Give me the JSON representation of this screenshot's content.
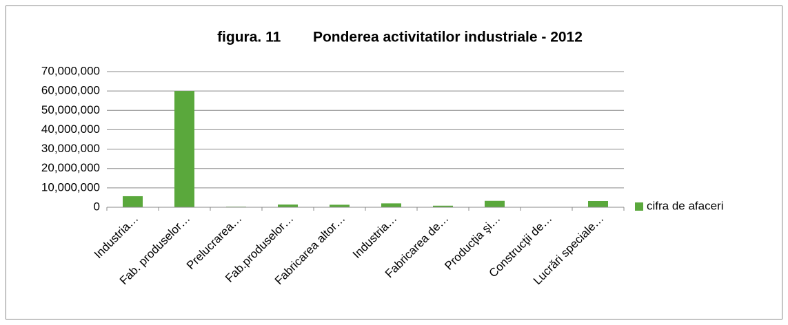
{
  "chart_data": {
    "type": "bar",
    "title": "figura. 11        Ponderea activitatilor industriale - 2012",
    "categories": [
      "Industria…",
      "Fab. produselor…",
      "Prelucrarea…",
      "Fab.produselor…",
      "Fabricarea altor…",
      "Industria…",
      "Fabricarea de…",
      "Producţia şi…",
      "Construcţii de…",
      "Lucrări speciale…"
    ],
    "series": [
      {
        "name": "cifra de afaceri",
        "color": "#5aa83c",
        "values": [
          5700000,
          60000000,
          300000,
          1400000,
          1300000,
          2000000,
          800000,
          3300000,
          0,
          3200000
        ]
      }
    ],
    "ylim": [
      0,
      70000000
    ],
    "yticks": [
      {
        "value": 0,
        "label": "0"
      },
      {
        "value": 10000000,
        "label": "10,000,000"
      },
      {
        "value": 20000000,
        "label": "20,000,000"
      },
      {
        "value": 30000000,
        "label": "30,000,000"
      },
      {
        "value": 40000000,
        "label": "40,000,000"
      },
      {
        "value": 50000000,
        "label": "50,000,000"
      },
      {
        "value": 60000000,
        "label": "60,000,000"
      },
      {
        "value": 70000000,
        "label": "70,000,000"
      }
    ],
    "grid": true,
    "legend": "right"
  }
}
